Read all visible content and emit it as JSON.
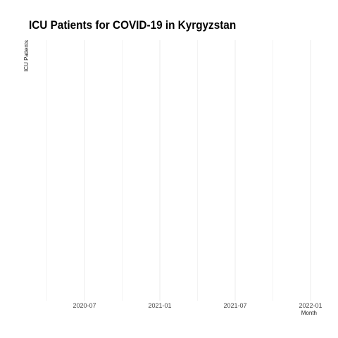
{
  "chart_data": {
    "type": "line",
    "title": "ICU Patients for COVID-19 in Kyrgyzstan",
    "xlabel": "Month",
    "ylabel": "ICU Patients",
    "x_ticks": [
      "2020-07",
      "2021-01",
      "2021-07",
      "2022-01"
    ],
    "series": [],
    "grid": true,
    "colors": {
      "gridline": "#ebebeb",
      "text": "#444444"
    }
  }
}
